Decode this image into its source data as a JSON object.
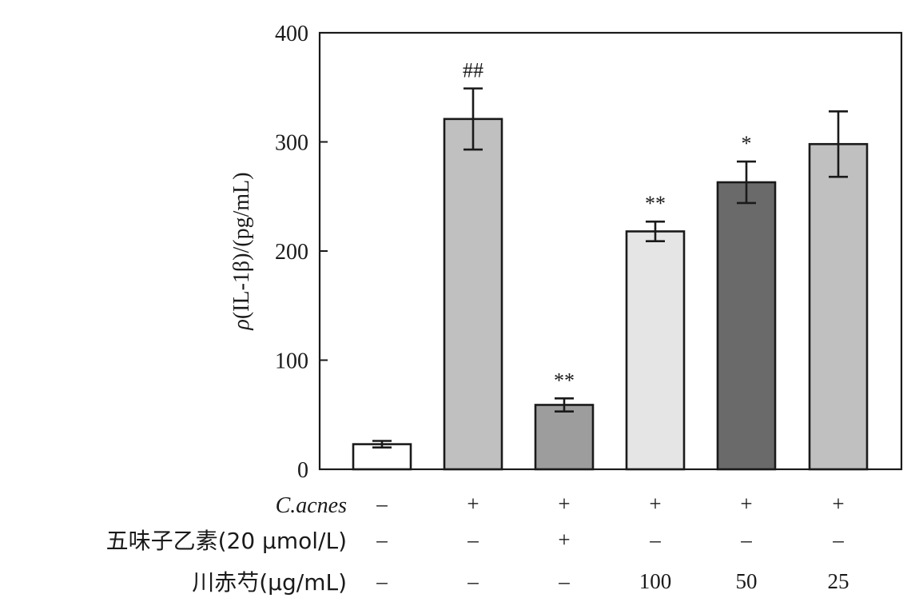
{
  "chart_data": {
    "type": "bar",
    "ylabel": "ρ(IL-1β)/(pg/mL)",
    "ylim": [
      0,
      400
    ],
    "yticks": [
      0,
      100,
      200,
      300,
      400
    ],
    "grid": false,
    "bars": [
      {
        "value": 23,
        "error": 3,
        "annotation": "",
        "color": "#ffffff"
      },
      {
        "value": 321,
        "error": 28,
        "annotation": "##",
        "color": "#bfc0bf"
      },
      {
        "value": 59,
        "error": 6,
        "annotation": "**",
        "color": "#9c9d9c"
      },
      {
        "value": 218,
        "error": 9,
        "annotation": "**",
        "color": "#e5e5e5"
      },
      {
        "value": 263,
        "error": 19,
        "annotation": "*",
        "color": "#6a6a6a"
      },
      {
        "value": 298,
        "error": 30,
        "annotation": "",
        "color": "#bfc0bf"
      }
    ],
    "treatment_rows": [
      {
        "label": "C.acnes",
        "italic": true,
        "values": [
          "–",
          "+",
          "+",
          "+",
          "+",
          "+"
        ]
      },
      {
        "label": "五味子乙素(20 μmol/L)",
        "italic": false,
        "values": [
          "–",
          "–",
          "+",
          "–",
          "–",
          "–"
        ]
      },
      {
        "label": "川赤芍(μg/mL)",
        "italic": false,
        "values": [
          "–",
          "–",
          "–",
          "100",
          "50",
          "25"
        ]
      }
    ]
  }
}
